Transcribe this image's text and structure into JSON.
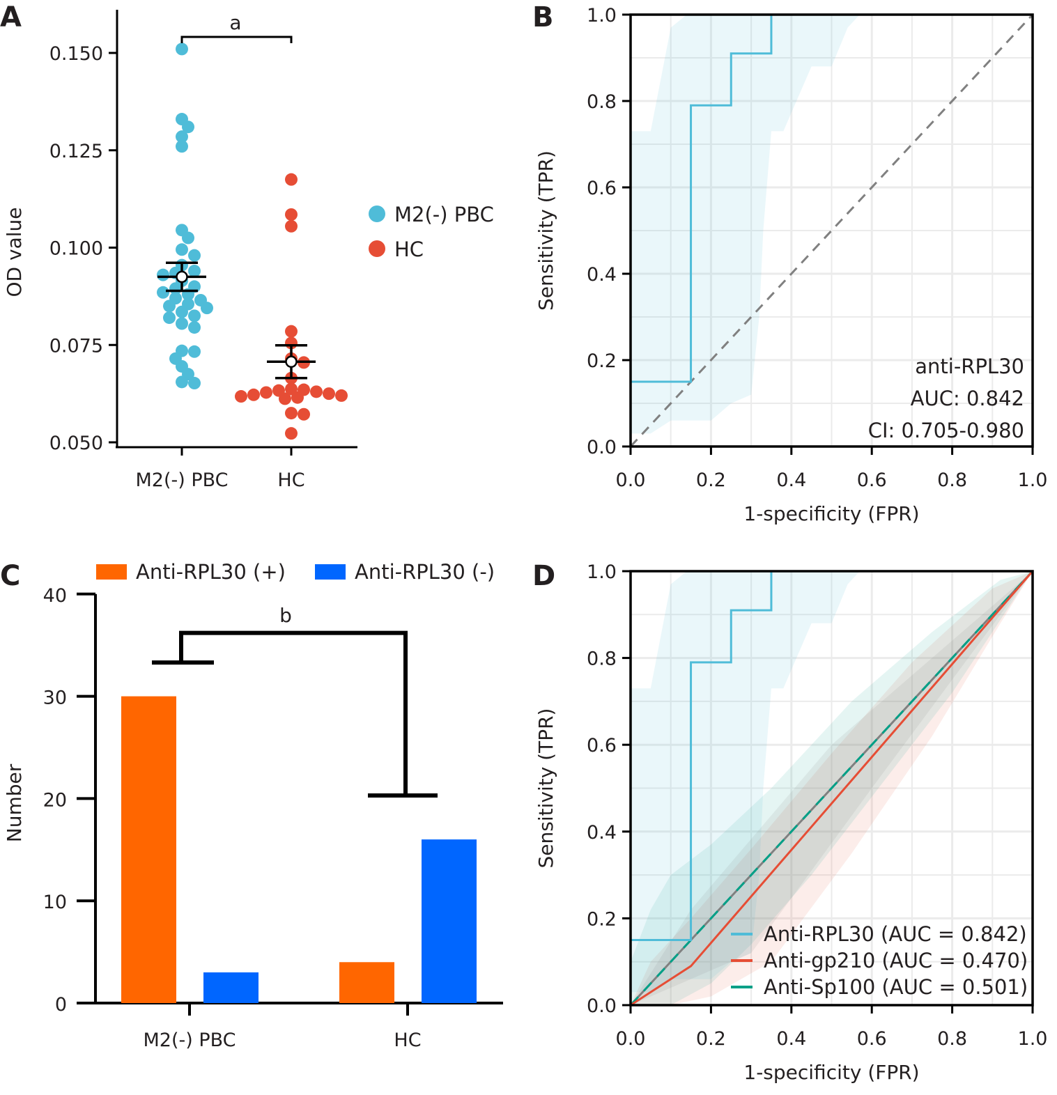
{
  "panels": {
    "A": {
      "letter": "A"
    },
    "B": {
      "letter": "B"
    },
    "C": {
      "letter": "C"
    },
    "D": {
      "letter": "D"
    }
  },
  "colors": {
    "pbc": "#4fbcd8",
    "hc": "#e64d35",
    "rpl30": "#4fbcd8",
    "gp210": "#e64d35",
    "sp100": "#00a087",
    "bar_pos": "#ff6600",
    "bar_neg": "#0066ff",
    "diagonal": "#808080",
    "grid": "#ebebeb"
  },
  "chart_data": [
    {
      "panel": "A",
      "type": "scatter",
      "title": "",
      "xlabel": "",
      "ylabel": "OD value",
      "ylim": [
        0.05,
        0.16
      ],
      "yticks": [
        0.05,
        0.075,
        0.1,
        0.125,
        0.15
      ],
      "ytick_labels": [
        "0.050",
        "0.075",
        "0.100",
        "0.125",
        "0.150"
      ],
      "categories": [
        "M2(-) PBC",
        "HC"
      ],
      "legend": {
        "position": "right",
        "entries": [
          "M2(-) PBC",
          "HC"
        ]
      },
      "significance": {
        "label": "a",
        "between": [
          "M2(-) PBC",
          "HC"
        ]
      },
      "series": [
        {
          "name": "M2(-) PBC",
          "values": [
            0.151,
            0.133,
            0.131,
            0.1285,
            0.126,
            0.1045,
            0.1025,
            0.0995,
            0.098,
            0.0955,
            0.094,
            0.0935,
            0.093,
            0.0915,
            0.09,
            0.0895,
            0.0885,
            0.088,
            0.087,
            0.0865,
            0.0855,
            0.085,
            0.0845,
            0.0835,
            0.0825,
            0.082,
            0.0805,
            0.0795,
            0.0735,
            0.0733,
            0.0715,
            0.0695,
            0.0675,
            0.0655,
            0.0652
          ],
          "mean": 0.0925,
          "sem_low": 0.0889,
          "sem_high": 0.0961
        },
        {
          "name": "HC",
          "values": [
            0.1175,
            0.1085,
            0.1055,
            0.0785,
            0.0755,
            0.0715,
            0.0705,
            0.0665,
            0.0637,
            0.0635,
            0.0633,
            0.063,
            0.0628,
            0.0625,
            0.0622,
            0.062,
            0.0618,
            0.0615,
            0.0612,
            0.0575,
            0.0572,
            0.0523
          ],
          "mean": 0.0707,
          "sem_low": 0.0665,
          "sem_high": 0.0749
        }
      ]
    },
    {
      "panel": "B",
      "type": "line",
      "title": "",
      "xlabel": "1-specificity (FPR)",
      "ylabel": "Sensitivity (TPR)",
      "xlim": [
        0,
        1
      ],
      "ylim": [
        0,
        1
      ],
      "xticks": [
        "0.0",
        "0.2",
        "0.4",
        "0.6",
        "0.8",
        "1.0"
      ],
      "yticks": [
        "0.0",
        "0.2",
        "0.4",
        "0.6",
        "0.8",
        "1.0"
      ],
      "grid": true,
      "annotation": [
        "anti-RPL30",
        "AUC: 0.842",
        "CI: 0.705-0.980"
      ],
      "series": [
        {
          "name": "anti-RPL30",
          "x": [
            0,
            0,
            0.15,
            0.15,
            0.25,
            0.25,
            0.35,
            0.35,
            1.0
          ],
          "y": [
            0,
            0.15,
            0.15,
            0.79,
            0.79,
            0.91,
            0.91,
            1.0,
            1.0
          ],
          "ci_upper": {
            "x": [
              0,
              0,
              0.05,
              0.1,
              0.1,
              0.14,
              0.17,
              1.0
            ],
            "y": [
              0.0,
              0.73,
              0.73,
              0.97,
              0.97,
              1.0,
              1.0,
              1.0
            ]
          },
          "ci_lower": {
            "x": [
              0,
              0.05,
              0.1,
              0.2,
              0.25,
              0.3,
              0.32,
              0.33,
              0.35,
              0.38,
              0.45,
              0.5,
              0.54,
              0.57
            ],
            "y": [
              0.03,
              0.03,
              0.06,
              0.06,
              0.1,
              0.12,
              0.3,
              0.5,
              0.73,
              0.73,
              0.88,
              0.88,
              0.97,
              1.0
            ]
          }
        },
        {
          "name": "diagonal",
          "x": [
            0,
            1
          ],
          "y": [
            0,
            1
          ],
          "style": "dashed"
        }
      ]
    },
    {
      "panel": "C",
      "type": "bar",
      "title": "",
      "xlabel": "",
      "ylabel": "Number",
      "ylim": [
        0,
        40
      ],
      "yticks": [
        0,
        10,
        20,
        30,
        40
      ],
      "categories": [
        "M2(-) PBC",
        "HC"
      ],
      "legend": {
        "position": "top",
        "entries": [
          "Anti-RPL30 (+)",
          "Anti-RPL30 (-)"
        ]
      },
      "significance": {
        "label": "b",
        "between": [
          "M2(-) PBC",
          "HC"
        ]
      },
      "series": [
        {
          "name": "Anti-RPL30 (+)",
          "values": [
            30,
            4
          ]
        },
        {
          "name": "Anti-RPL30 (-)",
          "values": [
            3,
            16
          ]
        }
      ]
    },
    {
      "panel": "D",
      "type": "line",
      "title": "",
      "xlabel": "1-specificity (FPR)",
      "ylabel": "Sensitivity (TPR)",
      "xlim": [
        0,
        1
      ],
      "ylim": [
        0,
        1
      ],
      "xticks": [
        "0.0",
        "0.2",
        "0.4",
        "0.6",
        "0.8",
        "1.0"
      ],
      "yticks": [
        "0.0",
        "0.2",
        "0.4",
        "0.6",
        "0.8",
        "1.0"
      ],
      "grid": true,
      "legend": {
        "position": "bottom-right",
        "entries": [
          "Anti-RPL30 (AUC = 0.842)",
          "Anti-gp210 (AUC = 0.470)",
          "Anti-Sp100 (AUC = 0.501)"
        ]
      },
      "series": [
        {
          "name": "Anti-RPL30 (AUC = 0.842)",
          "x": [
            0,
            0,
            0.15,
            0.15,
            0.25,
            0.25,
            0.35,
            0.35,
            1.0
          ],
          "y": [
            0,
            0.15,
            0.15,
            0.79,
            0.79,
            0.91,
            0.91,
            1.0,
            1.0
          ],
          "ci_upper": {
            "x": [
              0,
              0,
              0.05,
              0.1,
              0.1,
              0.14,
              0.17,
              1.0
            ],
            "y": [
              0.0,
              0.73,
              0.73,
              0.97,
              0.97,
              1.0,
              1.0,
              1.0
            ]
          },
          "ci_lower": {
            "x": [
              0,
              0.05,
              0.1,
              0.2,
              0.25,
              0.3,
              0.32,
              0.33,
              0.35,
              0.38,
              0.45,
              0.5,
              0.54,
              0.57
            ],
            "y": [
              0.03,
              0.03,
              0.06,
              0.06,
              0.1,
              0.12,
              0.3,
              0.5,
              0.73,
              0.73,
              0.88,
              0.88,
              0.97,
              1.0
            ]
          }
        },
        {
          "name": "Anti-gp210 (AUC = 0.470)",
          "x": [
            0,
            0.15,
            1.0
          ],
          "y": [
            0,
            0.09,
            1.0
          ],
          "ci_upper": {
            "x": [
              0,
              0.05,
              0.15,
              0.3,
              0.5,
              0.7,
              0.9,
              1.0
            ],
            "y": [
              0,
              0.1,
              0.2,
              0.36,
              0.58,
              0.79,
              0.96,
              1.0
            ]
          },
          "ci_lower": {
            "x": [
              0,
              0.1,
              0.2,
              0.35,
              0.55,
              0.75,
              0.92,
              1.0
            ],
            "y": [
              0,
              0.0,
              0.02,
              0.1,
              0.35,
              0.62,
              0.88,
              1.0
            ]
          }
        },
        {
          "name": "Anti-Sp100 (AUC = 0.501)",
          "x": [
            0,
            1.0
          ],
          "y": [
            0,
            1.0
          ],
          "ci_upper": {
            "x": [
              0,
              0.0,
              0.05,
              0.1,
              0.2,
              0.35,
              0.55,
              0.75,
              0.92,
              1.0
            ],
            "y": [
              0,
              0.1,
              0.22,
              0.3,
              0.37,
              0.5,
              0.7,
              0.86,
              0.98,
              1.0
            ]
          },
          "ci_lower": {
            "x": [
              0,
              0.1,
              0.2,
              0.3,
              0.45,
              0.6,
              0.8,
              0.95,
              1.0
            ],
            "y": [
              0,
              0.0,
              0.05,
              0.14,
              0.3,
              0.48,
              0.72,
              0.93,
              1.0
            ]
          }
        },
        {
          "name": "diagonal",
          "x": [
            0,
            1
          ],
          "y": [
            0,
            1
          ],
          "style": "solid-gray"
        }
      ]
    }
  ]
}
